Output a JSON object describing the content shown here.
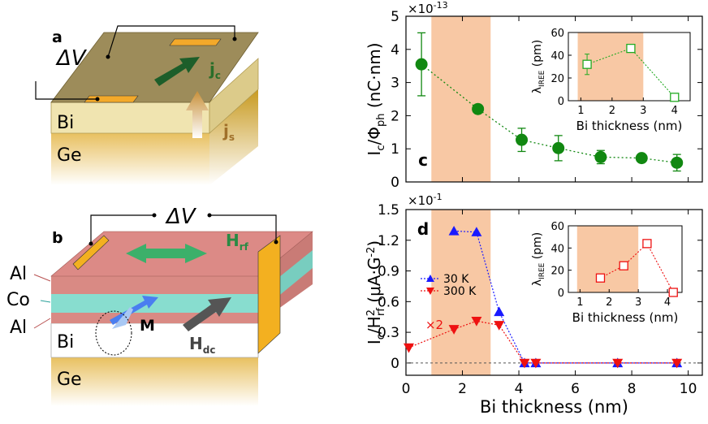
{
  "panel_a": {
    "letter": "a",
    "voltage": "ΔV",
    "jc_main": "j",
    "jc_sub": "c",
    "js_main": "j",
    "js_sub": "s",
    "bi": "Bi",
    "ge": "Ge"
  },
  "panel_b": {
    "letter": "b",
    "voltage": "ΔV",
    "hrf_main": "H",
    "hrf_sub": "rf",
    "hdc_main": "H",
    "hdc_sub": "dc",
    "m_label": "M",
    "al_top": "Al",
    "co": "Co",
    "al_bottom": "Al",
    "bi": "Bi",
    "ge": "Ge"
  },
  "chart_data": [
    {
      "type": "scatter",
      "panel": "c",
      "multiplier": "×10",
      "multiplier_exp": "-13",
      "ylabel_main": "I",
      "ylabel_sub": "c",
      "ylabel_mid": "/Φ",
      "ylabel_sub2": "ph",
      "ylabel_end": " (nC·nm)",
      "xlim": [
        0,
        10.5
      ],
      "ylim": [
        0,
        5
      ],
      "yticks": [
        "0",
        "1",
        "2",
        "3",
        "4",
        "5"
      ],
      "x": [
        0.55,
        1.3,
        2.55,
        3.4,
        4.1,
        4.7,
        5.4,
        6.1
      ],
      "x_note": "",
      "points": [
        {
          "x": 0.55,
          "y": 3.55,
          "err": 0.95
        },
        {
          "x": 2.55,
          "y": 2.2,
          "err": 0
        },
        {
          "x": 4.1,
          "y": 1.27,
          "err": 0.35
        },
        {
          "x": 5.4,
          "y": 1.02,
          "err": 0.38
        },
        {
          "x": 6.9,
          "y": 0.75,
          "err": 0.2
        },
        {
          "x": 8.35,
          "y": 0.72,
          "err": 0
        },
        {
          "x": 9.6,
          "y": 0.58,
          "err": 0.25
        }
      ],
      "shaded_x": [
        0.9,
        3.0
      ],
      "inset": {
        "xlabel": "Bi thickness (nm)",
        "ylabel_main": "λ",
        "ylabel_sub": "IREE",
        "ylabel_end": " (pm)",
        "xlim": [
          0.6,
          4.5
        ],
        "ylim": [
          0,
          60
        ],
        "xticks": [
          "1",
          "2",
          "3",
          "4"
        ],
        "yticks": [
          "0",
          "20",
          "40",
          "60"
        ],
        "shaded_x": [
          0.9,
          3.0
        ],
        "points": [
          {
            "x": 1.2,
            "y": 32,
            "err": 9
          },
          {
            "x": 2.6,
            "y": 46,
            "err": 0
          },
          {
            "x": 4.0,
            "y": 3,
            "err": 0
          }
        ]
      }
    },
    {
      "type": "scatter",
      "panel": "d",
      "multiplier": "×10",
      "multiplier_exp": "-1",
      "ylabel_main": "I",
      "ylabel_sub": "c",
      "ylabel_mid": "/H",
      "ylabel_sup2": "2",
      "ylabel_sub2": "rf",
      "ylabel_end": " (μA·G",
      "ylabel_sup3": "-2",
      "ylabel_close": ")",
      "xlabel": "Bi thickness (nm)",
      "xlim": [
        0,
        10.5
      ],
      "ylim": [
        -0.12,
        1.5
      ],
      "xticks": [
        "0",
        "2",
        "4",
        "6",
        "8",
        "10"
      ],
      "yticks": [
        "0",
        "0.3",
        "0.6",
        "0.9",
        "1.2",
        "1.5"
      ],
      "shaded_x": [
        0.9,
        3.0
      ],
      "annotation": "×2",
      "series": [
        {
          "name": "30 K",
          "color": "#1a1aff",
          "points": [
            {
              "x": 1.7,
              "y": 1.29
            },
            {
              "x": 2.5,
              "y": 1.28
            },
            {
              "x": 3.3,
              "y": 0.5
            },
            {
              "x": 4.2,
              "y": 0.0
            },
            {
              "x": 4.6,
              "y": 0.0
            },
            {
              "x": 7.5,
              "y": 0.0
            },
            {
              "x": 9.6,
              "y": 0.0
            }
          ]
        },
        {
          "name": "300 K",
          "color": "#ee1111",
          "points": [
            {
              "x": 0.1,
              "y": 0.15
            },
            {
              "x": 1.7,
              "y": 0.33
            },
            {
              "x": 2.5,
              "y": 0.41
            },
            {
              "x": 3.3,
              "y": 0.37
            },
            {
              "x": 4.2,
              "y": 0.0
            },
            {
              "x": 4.6,
              "y": 0.0
            },
            {
              "x": 7.5,
              "y": 0.0
            },
            {
              "x": 9.6,
              "y": 0.0
            }
          ]
        }
      ],
      "inset": {
        "xlabel": "Bi thickness (nm)",
        "ylabel_main": "λ",
        "ylabel_sub": "IREE",
        "ylabel_end": " (pm)",
        "xlim": [
          0.6,
          4.5
        ],
        "ylim": [
          0,
          60
        ],
        "xticks": [
          "1",
          "2",
          "3",
          "4"
        ],
        "yticks": [
          "0",
          "20",
          "40",
          "60"
        ],
        "shaded_x": [
          0.9,
          3.0
        ],
        "points": [
          {
            "x": 1.7,
            "y": 13
          },
          {
            "x": 2.5,
            "y": 24
          },
          {
            "x": 3.3,
            "y": 44
          },
          {
            "x": 4.2,
            "y": 0
          }
        ]
      }
    }
  ],
  "colors": {
    "shade": "#f8c8a4",
    "green": "#118811",
    "inset_green": "#22aa22",
    "red": "#ee1111",
    "blue": "#1a1aff"
  }
}
